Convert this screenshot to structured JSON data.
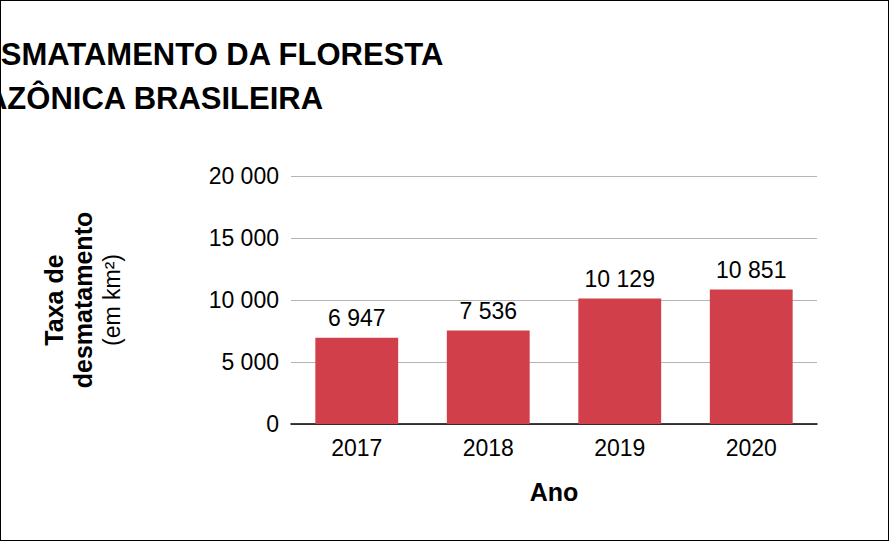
{
  "chart_data": {
    "type": "bar",
    "title": "TAXA DE DESMATAMENTO DA FLORESTA\nAMAZÔNICA BRASILEIRA",
    "xlabel": "Ano",
    "ylabel": "Taxa de desmatamento (em km²)",
    "categories": [
      "2017",
      "2018",
      "2019",
      "2020"
    ],
    "values": [
      6947,
      7536,
      10129,
      10851
    ],
    "value_labels": [
      "6 947",
      "7 536",
      "10 129",
      "10 851"
    ],
    "color": "#d1404a",
    "ylim": [
      0,
      20000
    ],
    "yticks": [
      0,
      {
        "value": 5000,
        "label": "5 000"
      },
      {
        "value": 10000,
        "label": "10 000"
      },
      {
        "value": 15000,
        "label": "15 000"
      },
      {
        "value": 20000,
        "label": "20 000"
      }
    ],
    "grid": true,
    "data_labels": true
  }
}
